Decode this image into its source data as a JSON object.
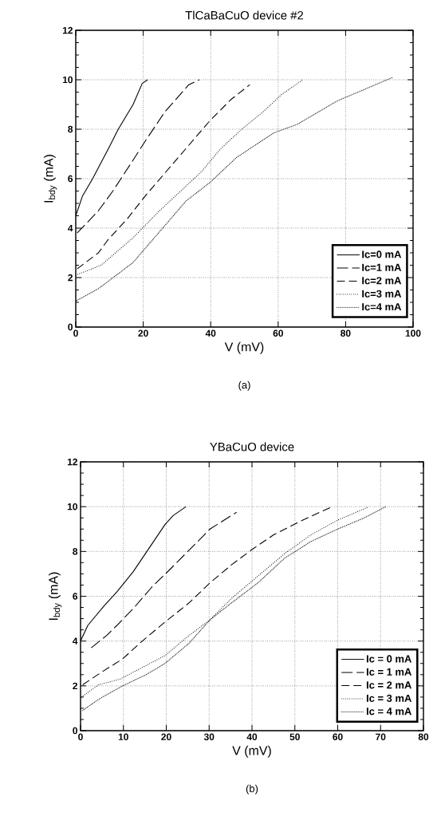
{
  "chart_data": [
    {
      "type": "line",
      "title": "TlCaBaCuO device #2",
      "xlabel": "V (mV)",
      "ylabel": "I$_{bdy}$ (mA)",
      "annotations": [
        "(a)"
      ],
      "xlim": [
        0,
        100
      ],
      "ylim": [
        0,
        12
      ],
      "xticks": [
        0,
        20,
        40,
        60,
        80,
        100
      ],
      "yticks": [
        0,
        2,
        4,
        6,
        8,
        10,
        12
      ],
      "grid": true,
      "legend": "bottom right",
      "series": [
        {
          "name": "Ic=0  mA",
          "color": "#000000",
          "line_style": "solid",
          "x": [
            0,
            2,
            5,
            10,
            12.6,
            17,
            19.7,
            21.3
          ],
          "values": [
            4.5,
            5.3,
            6,
            7.3,
            8,
            9,
            9.85,
            10
          ]
        },
        {
          "name": "Ic=1  mA",
          "color": "#000000",
          "line_style": "dashed",
          "x": [
            0.4,
            6.7,
            11,
            17,
            20.5,
            26.4,
            30.3,
            33.5,
            36.6
          ],
          "values": [
            3.8,
            4.7,
            5.5,
            6.75,
            7.5,
            8.7,
            9.3,
            9.8,
            10
          ]
        },
        {
          "name": "Ic=2  mA",
          "color": "#000000",
          "line_style": "dashed",
          "x": [
            0.4,
            6.7,
            9.4,
            15.4,
            20.9,
            27.2,
            33.5,
            39.8,
            46,
            51.6
          ],
          "values": [
            2.35,
            3.0,
            3.5,
            4.4,
            5.35,
            6.35,
            7.35,
            8.35,
            9.2,
            9.8
          ]
        },
        {
          "name": "Ic=3  mA",
          "color": "#000000",
          "line_style": "dotted",
          "x": [
            0,
            7.5,
            16.9,
            24.8,
            31.9,
            37.4,
            42.9,
            49.2,
            55.5,
            61,
            67.3
          ],
          "values": [
            2.1,
            2.5,
            3.6,
            4.7,
            5.6,
            6.3,
            7.2,
            8,
            8.7,
            9.4,
            10
          ]
        },
        {
          "name": "Ic=4  mA",
          "color": "#000000",
          "line_style": "dotted",
          "x": [
            0,
            6.7,
            16.9,
            26.4,
            32.7,
            39.8,
            47.6,
            58.7,
            65.7,
            77.6,
            85.4,
            94
          ],
          "values": [
            1.05,
            1.55,
            2.6,
            4.1,
            5.1,
            5.85,
            6.85,
            7.85,
            8.2,
            9.15,
            9.6,
            10.1
          ]
        }
      ]
    },
    {
      "type": "line",
      "title": "YBaCuO device",
      "xlabel": "V (mV)",
      "ylabel": "I$_{bdy}$ (mA)",
      "annotations": [
        "(b)"
      ],
      "xlim": [
        0,
        80
      ],
      "ylim": [
        0,
        12
      ],
      "xticks": [
        0,
        10,
        20,
        30,
        40,
        50,
        60,
        70,
        80
      ],
      "yticks": [
        0,
        2,
        4,
        6,
        8,
        10,
        12
      ],
      "grid": true,
      "legend": "bottom right",
      "series": [
        {
          "name": "Ic = 0  mA",
          "color": "#000000",
          "line_style": "solid",
          "x": [
            0,
            1.7,
            5.4,
            8.5,
            12.3,
            16,
            19.7,
            21.6,
            24.6
          ],
          "values": [
            4.0,
            4.7,
            5.55,
            6.2,
            7.1,
            8.15,
            9.2,
            9.6,
            10
          ]
        },
        {
          "name": "Ic = 1  mA",
          "color": "#000000",
          "line_style": "dashed",
          "x": [
            2.5,
            6.1,
            8.5,
            12.3,
            16.6,
            21.4,
            27.1,
            30.2,
            36.4
          ],
          "values": [
            3.7,
            4.25,
            4.7,
            5.45,
            6.4,
            7.3,
            8.4,
            9.0,
            9.75
          ]
        },
        {
          "name": "Ic = 2  mA",
          "color": "#000000",
          "line_style": "dashed",
          "x": [
            0.5,
            4.8,
            9.8,
            14.1,
            19.7,
            25.3,
            30.2,
            35.2,
            40.1,
            45.1,
            51.3,
            58.7
          ],
          "values": [
            2.05,
            2.6,
            3.2,
            3.95,
            4.85,
            5.7,
            6.6,
            7.4,
            8.1,
            8.75,
            9.35,
            10
          ]
        },
        {
          "name": "Ic = 3  mA",
          "color": "#000000",
          "line_style": "dotted",
          "x": [
            0.2,
            4.2,
            9.2,
            14.7,
            19.7,
            25.3,
            30.2,
            35.2,
            41.4,
            47.6,
            53.8,
            60,
            67.3
          ],
          "values": [
            1.5,
            2.05,
            2.3,
            2.85,
            3.35,
            4.25,
            4.95,
            5.9,
            6.9,
            7.9,
            8.75,
            9.4,
            10
          ]
        },
        {
          "name": "Ic = 4  mA",
          "color": "#000000",
          "line_style": "dotted",
          "x": [
            0.5,
            4.2,
            9.8,
            15.3,
            19.7,
            25.3,
            30.2,
            35.2,
            41.4,
            47.6,
            53.8,
            60,
            66.2,
            71.2
          ],
          "values": [
            0.9,
            1.4,
            2.0,
            2.5,
            3.0,
            3.9,
            4.95,
            5.7,
            6.6,
            7.7,
            8.45,
            9.0,
            9.5,
            10
          ]
        }
      ]
    }
  ]
}
